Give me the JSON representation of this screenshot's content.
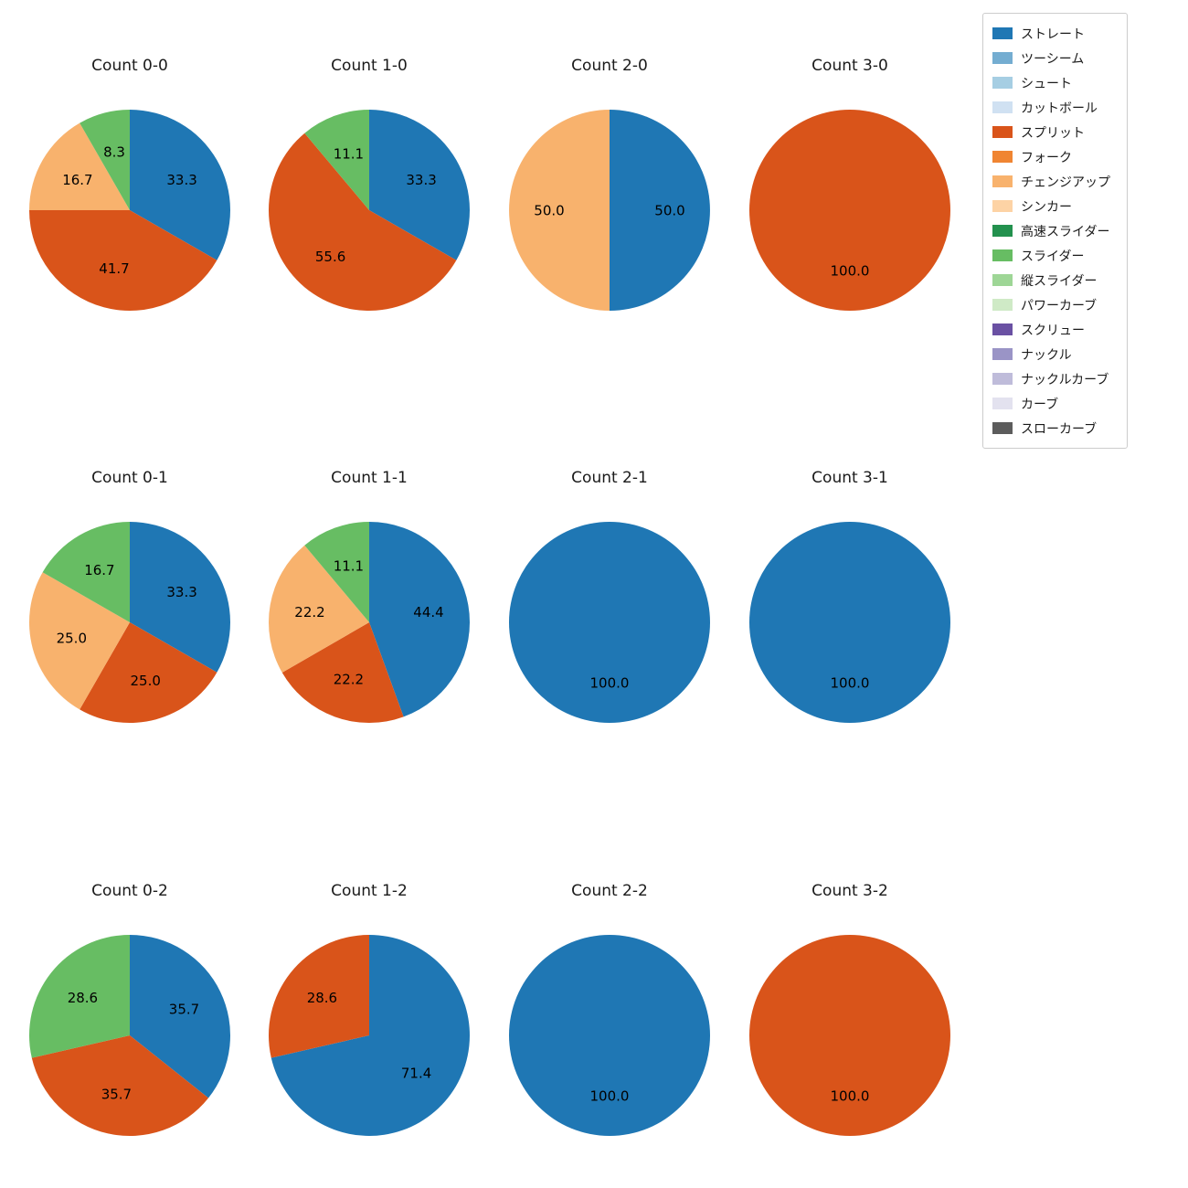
{
  "figure": {
    "background": "#ffffff"
  },
  "legend": {
    "position": "top-right",
    "items": [
      {
        "label": "ストレート",
        "color": "#1f77b4"
      },
      {
        "label": "ツーシーム",
        "color": "#74add1"
      },
      {
        "label": "シュート",
        "color": "#a6cee3"
      },
      {
        "label": "カットボール",
        "color": "#d0e1f2"
      },
      {
        "label": "スプリット",
        "color": "#d9541a"
      },
      {
        "label": "フォーク",
        "color": "#f08532"
      },
      {
        "label": "チェンジアップ",
        "color": "#f8b26d"
      },
      {
        "label": "シンカー",
        "color": "#fdd3a5"
      },
      {
        "label": "高速スライダー",
        "color": "#23914e"
      },
      {
        "label": "スライダー",
        "color": "#67bd63"
      },
      {
        "label": "縦スライダー",
        "color": "#9ed696"
      },
      {
        "label": "パワーカーブ",
        "color": "#cfeac6"
      },
      {
        "label": "スクリュー",
        "color": "#6a51a3"
      },
      {
        "label": "ナックル",
        "color": "#9a94c6"
      },
      {
        "label": "ナックルカーブ",
        "color": "#bfbcda"
      },
      {
        "label": "カーブ",
        "color": "#e3e2ef"
      },
      {
        "label": "スローカーブ",
        "color": "#5c5c5c"
      }
    ]
  },
  "chart_data": {
    "type": "pie",
    "unit": "percent",
    "start_angle": 90,
    "direction": "clockwise",
    "label_format": "one_decimal",
    "legend_position": "top-right",
    "grid": {
      "columns": 4,
      "rows": 3
    },
    "charts": [
      {
        "title": "Count 0-0",
        "slices": [
          {
            "label": "ストレート",
            "value": 33.3
          },
          {
            "label": "スプリット",
            "value": 41.7
          },
          {
            "label": "チェンジアップ",
            "value": 16.7
          },
          {
            "label": "スライダー",
            "value": 8.3
          }
        ]
      },
      {
        "title": "Count 1-0",
        "slices": [
          {
            "label": "ストレート",
            "value": 33.3
          },
          {
            "label": "スプリット",
            "value": 55.6
          },
          {
            "label": "スライダー",
            "value": 11.1
          }
        ]
      },
      {
        "title": "Count 2-0",
        "slices": [
          {
            "label": "ストレート",
            "value": 50.0
          },
          {
            "label": "チェンジアップ",
            "value": 50.0
          }
        ]
      },
      {
        "title": "Count 3-0",
        "slices": [
          {
            "label": "スプリット",
            "value": 100.0
          }
        ]
      },
      {
        "title": "Count 0-1",
        "slices": [
          {
            "label": "ストレート",
            "value": 33.3
          },
          {
            "label": "スプリット",
            "value": 25.0
          },
          {
            "label": "チェンジアップ",
            "value": 25.0
          },
          {
            "label": "スライダー",
            "value": 16.7
          }
        ]
      },
      {
        "title": "Count 1-1",
        "slices": [
          {
            "label": "ストレート",
            "value": 44.4
          },
          {
            "label": "スプリット",
            "value": 22.2
          },
          {
            "label": "チェンジアップ",
            "value": 22.2
          },
          {
            "label": "スライダー",
            "value": 11.1
          }
        ]
      },
      {
        "title": "Count 2-1",
        "slices": [
          {
            "label": "ストレート",
            "value": 100.0
          }
        ]
      },
      {
        "title": "Count 3-1",
        "slices": [
          {
            "label": "ストレート",
            "value": 100.0
          }
        ]
      },
      {
        "title": "Count 0-2",
        "slices": [
          {
            "label": "ストレート",
            "value": 35.7
          },
          {
            "label": "スプリット",
            "value": 35.7
          },
          {
            "label": "スライダー",
            "value": 28.6
          }
        ]
      },
      {
        "title": "Count 1-2",
        "slices": [
          {
            "label": "ストレート",
            "value": 71.4
          },
          {
            "label": "スプリット",
            "value": 28.6
          }
        ]
      },
      {
        "title": "Count 2-2",
        "slices": [
          {
            "label": "ストレート",
            "value": 100.0
          }
        ]
      },
      {
        "title": "Count 3-2",
        "slices": [
          {
            "label": "スプリット",
            "value": 100.0
          }
        ]
      }
    ]
  }
}
